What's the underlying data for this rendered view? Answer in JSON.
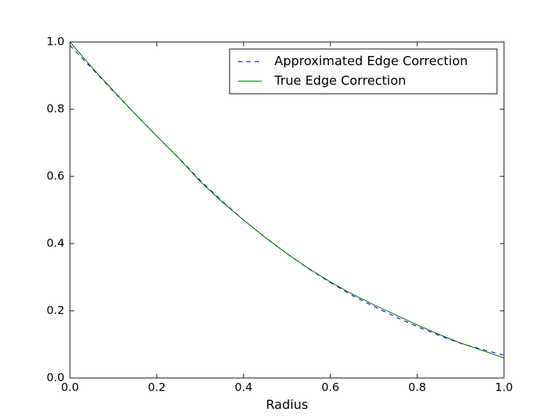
{
  "chart_data": {
    "type": "line",
    "x_label": "Radius",
    "x": [
      0,
      0.05,
      0.1,
      0.15,
      0.2,
      0.25,
      0.3,
      0.35,
      0.4,
      0.45,
      0.5,
      0.55,
      0.6,
      0.65,
      0.7,
      0.75,
      0.8,
      0.85,
      0.9,
      0.95,
      1.0
    ],
    "series": [
      {
        "name": "Approximated Edge Correction",
        "color": "#0000ff",
        "dash": true,
        "values": [
          0.99,
          0.922,
          0.853,
          0.786,
          0.72,
          0.656,
          0.588,
          0.527,
          0.47,
          0.418,
          0.37,
          0.325,
          0.284,
          0.246,
          0.213,
          0.182,
          0.153,
          0.127,
          0.103,
          0.085,
          0.068
        ]
      },
      {
        "name": "True Edge Correction",
        "color": "#008000",
        "dash": false,
        "values": [
          1.0,
          0.925,
          0.855,
          0.786,
          0.72,
          0.655,
          0.585,
          0.525,
          0.47,
          0.418,
          0.37,
          0.326,
          0.286,
          0.25,
          0.218,
          0.188,
          0.158,
          0.13,
          0.104,
          0.082,
          0.06
        ]
      }
    ],
    "xlim": [
      0,
      1
    ],
    "ylim": [
      0,
      1
    ],
    "xticks": [
      {
        "value": 0,
        "label": "0.0"
      },
      0.2,
      0.4,
      0.6,
      0.8,
      {
        "value": 1,
        "label": "1.0"
      }
    ],
    "yticks": [
      {
        "value": 0,
        "label": "0.0"
      },
      0.2,
      0.4,
      0.6,
      0.8,
      {
        "value": 1,
        "label": "1.0"
      }
    ],
    "legend": "upper right"
  }
}
